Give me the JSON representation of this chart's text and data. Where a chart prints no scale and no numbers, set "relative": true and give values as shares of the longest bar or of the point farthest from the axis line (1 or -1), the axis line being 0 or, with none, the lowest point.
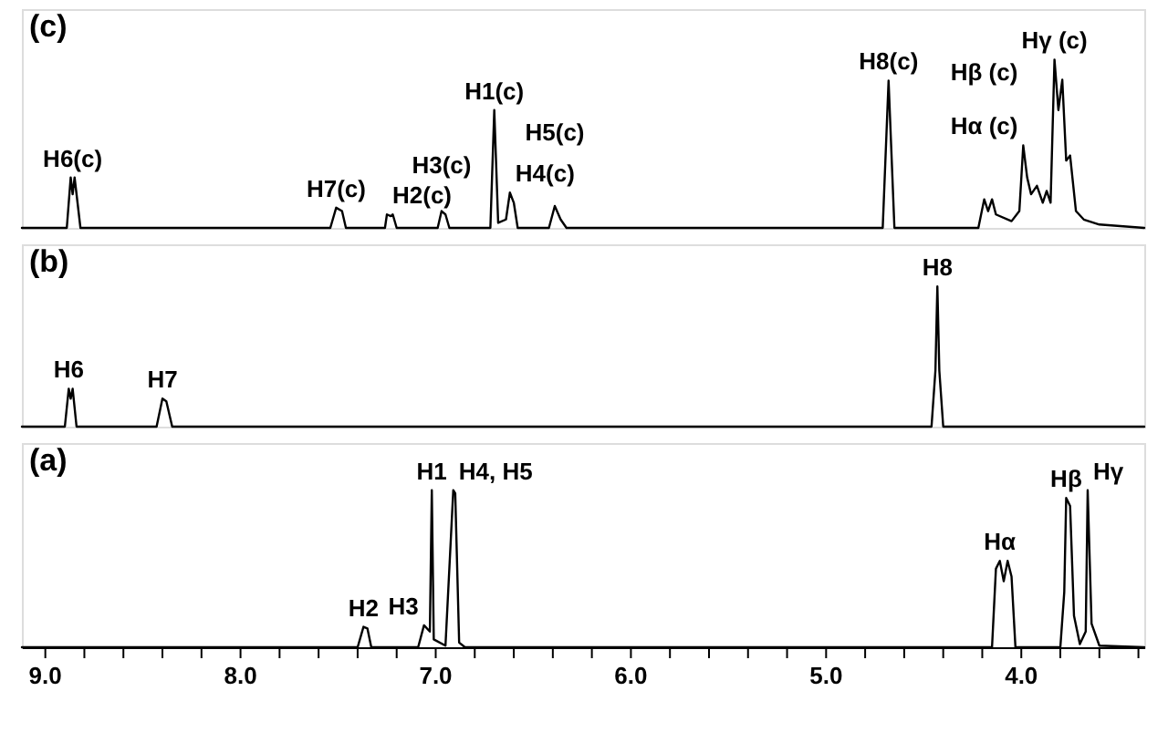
{
  "chart_data": [
    {
      "type": "line",
      "title": "(c)",
      "relative": true,
      "xlim": [
        9.12,
        3.37
      ],
      "tick_labels": false,
      "series": [
        {
          "color": "#000000",
          "x": [
            9.12,
            8.89,
            8.87,
            8.86,
            8.85,
            8.82,
            7.54,
            7.51,
            7.48,
            7.46,
            7.26,
            7.25,
            7.23,
            7.22,
            7.2,
            6.99,
            6.97,
            6.95,
            6.93,
            6.72,
            6.7,
            6.68,
            6.64,
            6.62,
            6.6,
            6.58,
            6.42,
            6.39,
            6.36,
            6.33,
            4.71,
            4.68,
            4.65,
            4.22,
            4.19,
            4.17,
            4.15,
            4.13,
            4.05,
            4.01,
            3.99,
            3.97,
            3.95,
            3.92,
            3.89,
            3.87,
            3.85,
            3.83,
            3.81,
            3.79,
            3.77,
            3.75,
            3.72,
            3.68,
            3.6,
            3.37
          ],
          "values": [
            0,
            0,
            0.3,
            0.2,
            0.3,
            0,
            0,
            0.12,
            0.1,
            0,
            0,
            0.08,
            0.07,
            0.08,
            0,
            0,
            0.1,
            0.08,
            0,
            0,
            0.7,
            0.03,
            0.05,
            0.21,
            0.15,
            0,
            0,
            0.13,
            0.05,
            0,
            0,
            0.875,
            0,
            0,
            0.17,
            0.1,
            0.17,
            0.08,
            0.04,
            0.1,
            0.49,
            0.3,
            0.2,
            0.25,
            0.15,
            0.22,
            0.15,
            1.0,
            0.7,
            0.88,
            0.4,
            0.43,
            0.1,
            0.05,
            0.02,
            0
          ]
        }
      ],
      "annotations": [
        {
          "text": "H6(c)",
          "x": 8.86,
          "y": 0.3
        },
        {
          "text": "H7(c)",
          "x": 7.51,
          "y": 0.12
        },
        {
          "text": "H2(c)",
          "x": 7.25,
          "y": 0.08
        },
        {
          "text": "H3(c)",
          "x": 6.97,
          "y": 0.1
        },
        {
          "text": "H1(c)",
          "x": 6.7,
          "y": 0.7
        },
        {
          "text": "H4(c)",
          "x": 6.62,
          "y": 0.21
        },
        {
          "text": "H5(c)",
          "x": 6.39,
          "y": 0.13
        },
        {
          "text": "H8(c)",
          "x": 4.68,
          "y": 0.875
        },
        {
          "text": "Hα (c)",
          "x": 4.19,
          "y": 0.17
        },
        {
          "text": "Hβ (c)",
          "x": 3.99,
          "y": 0.49
        },
        {
          "text": "Hγ (c)",
          "x": 3.83,
          "y": 1.0
        }
      ]
    },
    {
      "type": "line",
      "title": "(b)",
      "relative": true,
      "xlim": [
        9.12,
        3.37
      ],
      "tick_labels": false,
      "series": [
        {
          "color": "#000000",
          "x": [
            9.12,
            8.9,
            8.88,
            8.87,
            8.86,
            8.84,
            8.43,
            8.4,
            8.38,
            8.35,
            4.46,
            4.44,
            4.43,
            4.42,
            4.4,
            3.37
          ],
          "values": [
            0,
            0,
            0.27,
            0.2,
            0.27,
            0,
            0,
            0.2,
            0.18,
            0,
            0,
            0.4,
            1.0,
            0.4,
            0,
            0
          ]
        }
      ],
      "annotations": [
        {
          "text": "H6",
          "x": 8.88,
          "y": 0.27
        },
        {
          "text": "H7",
          "x": 8.4,
          "y": 0.2
        },
        {
          "text": "H8",
          "x": 4.43,
          "y": 1.0
        }
      ]
    },
    {
      "type": "line",
      "title": "(a)",
      "relative": true,
      "xlim": [
        9.12,
        3.37
      ],
      "tick_labels": "x",
      "xticks": [
        {
          "value": 9.0,
          "label": "9.0"
        },
        {
          "value": 8.8,
          "label": null
        },
        {
          "value": 8.6,
          "label": null
        },
        {
          "value": 8.4,
          "label": null
        },
        {
          "value": 8.2,
          "label": null
        },
        {
          "value": 8.0,
          "label": "8.0"
        },
        {
          "value": 7.8,
          "label": null
        },
        {
          "value": 7.6,
          "label": null
        },
        {
          "value": 7.4,
          "label": null
        },
        {
          "value": 7.2,
          "label": null
        },
        {
          "value": 7.0,
          "label": "7.0"
        },
        {
          "value": 6.8,
          "label": null
        },
        {
          "value": 6.6,
          "label": null
        },
        {
          "value": 6.4,
          "label": null
        },
        {
          "value": 6.2,
          "label": null
        },
        {
          "value": 6.0,
          "label": "6.0"
        },
        {
          "value": 5.8,
          "label": null
        },
        {
          "value": 5.6,
          "label": null
        },
        {
          "value": 5.4,
          "label": null
        },
        {
          "value": 5.2,
          "label": null
        },
        {
          "value": 5.0,
          "label": "5.0"
        },
        {
          "value": 4.8,
          "label": null
        },
        {
          "value": 4.6,
          "label": null
        },
        {
          "value": 4.4,
          "label": null
        },
        {
          "value": 4.2,
          "label": null
        },
        {
          "value": 4.0,
          "label": "4.0"
        },
        {
          "value": 3.8,
          "label": null
        },
        {
          "value": 3.6,
          "label": null
        },
        {
          "value": 3.4,
          "label": null
        }
      ],
      "series": [
        {
          "color": "#000000",
          "x": [
            9.12,
            7.4,
            7.37,
            7.35,
            7.33,
            7.09,
            7.06,
            7.03,
            7.02,
            7.01,
            6.95,
            6.91,
            6.9,
            6.88,
            6.85,
            4.15,
            4.13,
            4.11,
            4.09,
            4.07,
            4.05,
            4.03,
            3.8,
            3.78,
            3.77,
            3.75,
            3.73,
            3.7,
            3.67,
            3.66,
            3.64,
            3.6,
            3.37
          ],
          "values": [
            0,
            0,
            0.13,
            0.12,
            0,
            0,
            0.14,
            0.1,
            1.0,
            0.05,
            0.01,
            1.0,
            0.98,
            0.03,
            0,
            0,
            0.5,
            0.55,
            0.42,
            0.55,
            0.45,
            0,
            0,
            0.35,
            0.95,
            0.9,
            0.2,
            0.02,
            0.1,
            1.0,
            0.15,
            0.01,
            0
          ]
        }
      ],
      "annotations": [
        {
          "text": "H2",
          "x": 7.37,
          "y": 0.13
        },
        {
          "text": "H3",
          "x": 7.06,
          "y": 0.14
        },
        {
          "text": "H1",
          "x": 7.02,
          "y": 1.0
        },
        {
          "text": "H4, H5",
          "x": 6.91,
          "y": 1.0
        },
        {
          "text": "Hα",
          "x": 4.11,
          "y": 0.55
        },
        {
          "text": "Hβ",
          "x": 3.77,
          "y": 0.95
        },
        {
          "text": "Hγ",
          "x": 3.66,
          "y": 1.0
        }
      ]
    }
  ]
}
